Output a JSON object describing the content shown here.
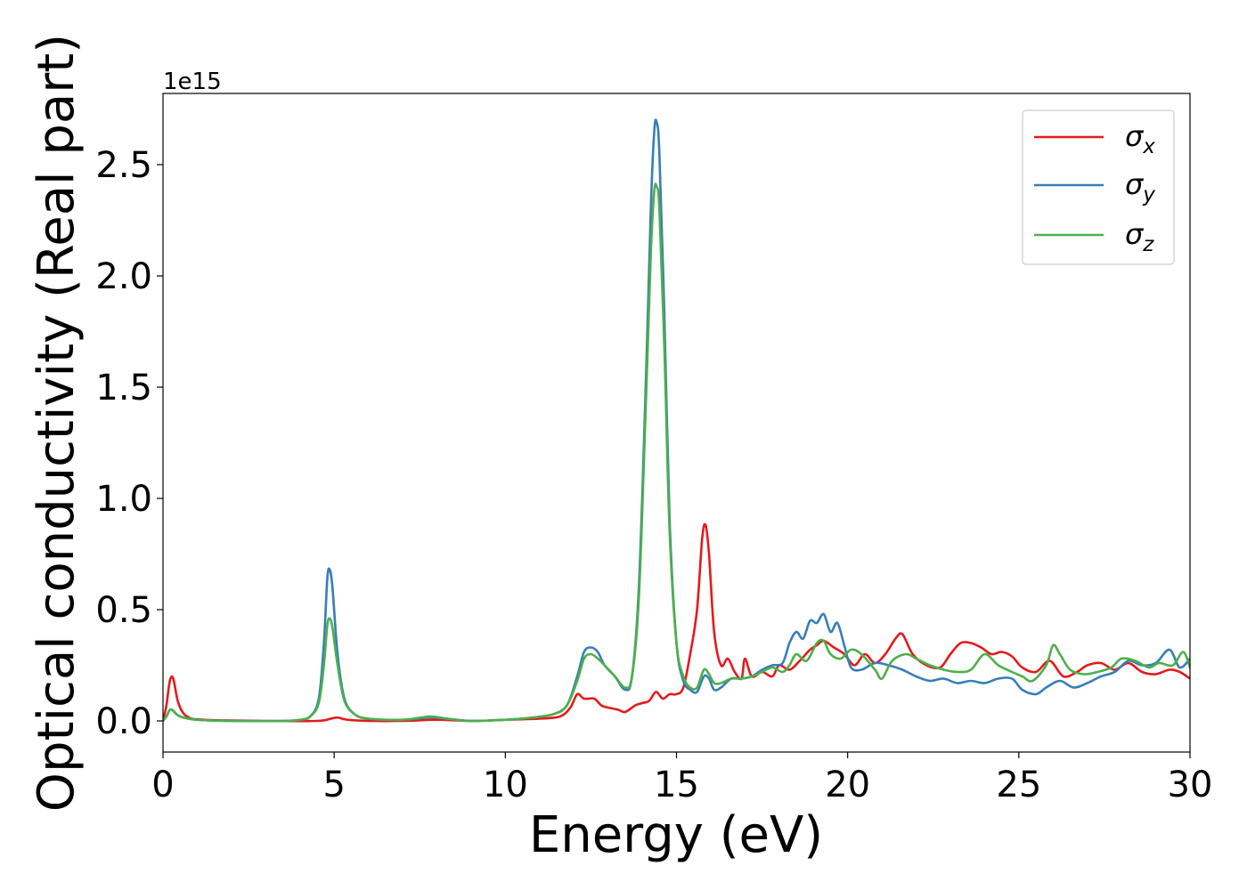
{
  "chart_data": {
    "type": "line",
    "xlabel": "Energy (eV)",
    "ylabel": "Optical conductivity (Real part)",
    "offset_label": "1e15",
    "y_scale_factor": 1000000000000000.0,
    "xlim": [
      0,
      30
    ],
    "ylim": [
      -0.14,
      2.82
    ],
    "xticks": [
      0,
      5,
      10,
      15,
      20,
      25,
      30
    ],
    "xtick_labels": [
      "0",
      "5",
      "10",
      "15",
      "20",
      "25",
      "30"
    ],
    "yticks": [
      0.0,
      0.5,
      1.0,
      1.5,
      2.0,
      2.5
    ],
    "ytick_labels": [
      "0.0",
      "0.5",
      "1.0",
      "1.5",
      "2.0",
      "2.5"
    ],
    "grid": false,
    "legend_position": "top-right",
    "series": [
      {
        "name": "σx",
        "legend_symbol": "σ",
        "legend_subscript": "x",
        "color": "#e41a1c",
        "points": [
          [
            0,
            0.0
          ],
          [
            0.1,
            0.07
          ],
          [
            0.2,
            0.18
          ],
          [
            0.3,
            0.19
          ],
          [
            0.45,
            0.08
          ],
          [
            0.7,
            0.02
          ],
          [
            1.2,
            0.005
          ],
          [
            3,
            0.0
          ],
          [
            4.5,
            0.0
          ],
          [
            4.9,
            0.01
          ],
          [
            5.1,
            0.015
          ],
          [
            5.4,
            0.005
          ],
          [
            6,
            0.0
          ],
          [
            7,
            0.0
          ],
          [
            8,
            0.005
          ],
          [
            9,
            0.0
          ],
          [
            10,
            0.005
          ],
          [
            11,
            0.01
          ],
          [
            11.6,
            0.02
          ],
          [
            11.9,
            0.06
          ],
          [
            12.1,
            0.12
          ],
          [
            12.3,
            0.1
          ],
          [
            12.6,
            0.1
          ],
          [
            12.8,
            0.07
          ],
          [
            13.0,
            0.06
          ],
          [
            13.3,
            0.05
          ],
          [
            13.5,
            0.04
          ],
          [
            13.8,
            0.07
          ],
          [
            14.0,
            0.08
          ],
          [
            14.2,
            0.09
          ],
          [
            14.4,
            0.13
          ],
          [
            14.6,
            0.1
          ],
          [
            14.8,
            0.12
          ],
          [
            15.0,
            0.12
          ],
          [
            15.2,
            0.15
          ],
          [
            15.4,
            0.3
          ],
          [
            15.6,
            0.5
          ],
          [
            15.75,
            0.82
          ],
          [
            15.85,
            0.88
          ],
          [
            15.95,
            0.75
          ],
          [
            16.1,
            0.4
          ],
          [
            16.3,
            0.25
          ],
          [
            16.5,
            0.28
          ],
          [
            16.7,
            0.22
          ],
          [
            16.9,
            0.19
          ],
          [
            17.0,
            0.28
          ],
          [
            17.2,
            0.2
          ],
          [
            17.5,
            0.22
          ],
          [
            17.8,
            0.2
          ],
          [
            18.0,
            0.25
          ],
          [
            18.3,
            0.23
          ],
          [
            18.6,
            0.27
          ],
          [
            18.9,
            0.32
          ],
          [
            19.1,
            0.34
          ],
          [
            19.3,
            0.36
          ],
          [
            19.6,
            0.33
          ],
          [
            19.9,
            0.3
          ],
          [
            20.2,
            0.25
          ],
          [
            20.5,
            0.3
          ],
          [
            20.8,
            0.26
          ],
          [
            21.1,
            0.3
          ],
          [
            21.4,
            0.37
          ],
          [
            21.6,
            0.39
          ],
          [
            21.9,
            0.3
          ],
          [
            22.3,
            0.25
          ],
          [
            22.7,
            0.24
          ],
          [
            23.0,
            0.3
          ],
          [
            23.3,
            0.35
          ],
          [
            23.6,
            0.35
          ],
          [
            23.9,
            0.33
          ],
          [
            24.2,
            0.3
          ],
          [
            24.5,
            0.31
          ],
          [
            24.8,
            0.29
          ],
          [
            25.1,
            0.24
          ],
          [
            25.5,
            0.22
          ],
          [
            25.9,
            0.27
          ],
          [
            26.3,
            0.2
          ],
          [
            26.7,
            0.22
          ],
          [
            27.0,
            0.25
          ],
          [
            27.4,
            0.26
          ],
          [
            27.8,
            0.23
          ],
          [
            28.2,
            0.26
          ],
          [
            28.6,
            0.22
          ],
          [
            29.0,
            0.21
          ],
          [
            29.4,
            0.23
          ],
          [
            29.7,
            0.22
          ],
          [
            30,
            0.19
          ]
        ]
      },
      {
        "name": "σy",
        "legend_symbol": "σ",
        "legend_subscript": "y",
        "color": "#377eb8",
        "points": [
          [
            0,
            0.0
          ],
          [
            0.1,
            0.02
          ],
          [
            0.2,
            0.05
          ],
          [
            0.3,
            0.045
          ],
          [
            0.5,
            0.02
          ],
          [
            1,
            0.005
          ],
          [
            2,
            0.0
          ],
          [
            3.5,
            0.0
          ],
          [
            4.0,
            0.005
          ],
          [
            4.3,
            0.02
          ],
          [
            4.55,
            0.1
          ],
          [
            4.7,
            0.35
          ],
          [
            4.8,
            0.64
          ],
          [
            4.87,
            0.68
          ],
          [
            4.95,
            0.6
          ],
          [
            5.1,
            0.3
          ],
          [
            5.3,
            0.1
          ],
          [
            5.6,
            0.03
          ],
          [
            6,
            0.01
          ],
          [
            7,
            0.005
          ],
          [
            7.8,
            0.015
          ],
          [
            8.3,
            0.01
          ],
          [
            9,
            0.0
          ],
          [
            10,
            0.005
          ],
          [
            10.8,
            0.015
          ],
          [
            11.4,
            0.03
          ],
          [
            11.8,
            0.07
          ],
          [
            12.1,
            0.2
          ],
          [
            12.3,
            0.31
          ],
          [
            12.5,
            0.33
          ],
          [
            12.7,
            0.31
          ],
          [
            12.9,
            0.25
          ],
          [
            13.2,
            0.2
          ],
          [
            13.5,
            0.14
          ],
          [
            13.7,
            0.2
          ],
          [
            13.9,
            0.6
          ],
          [
            14.1,
            1.5
          ],
          [
            14.25,
            2.3
          ],
          [
            14.35,
            2.65
          ],
          [
            14.42,
            2.69
          ],
          [
            14.5,
            2.55
          ],
          [
            14.65,
            1.8
          ],
          [
            14.8,
            0.9
          ],
          [
            15.0,
            0.35
          ],
          [
            15.2,
            0.18
          ],
          [
            15.4,
            0.14
          ],
          [
            15.6,
            0.13
          ],
          [
            15.8,
            0.2
          ],
          [
            15.95,
            0.19
          ],
          [
            16.1,
            0.14
          ],
          [
            16.3,
            0.15
          ],
          [
            16.6,
            0.19
          ],
          [
            16.9,
            0.19
          ],
          [
            17.2,
            0.2
          ],
          [
            17.5,
            0.23
          ],
          [
            17.8,
            0.25
          ],
          [
            18.1,
            0.26
          ],
          [
            18.3,
            0.35
          ],
          [
            18.5,
            0.4
          ],
          [
            18.7,
            0.37
          ],
          [
            18.9,
            0.45
          ],
          [
            19.1,
            0.44
          ],
          [
            19.3,
            0.48
          ],
          [
            19.5,
            0.4
          ],
          [
            19.7,
            0.44
          ],
          [
            19.9,
            0.34
          ],
          [
            20.1,
            0.24
          ],
          [
            20.4,
            0.23
          ],
          [
            20.8,
            0.26
          ],
          [
            21.2,
            0.25
          ],
          [
            21.6,
            0.23
          ],
          [
            22.0,
            0.2
          ],
          [
            22.4,
            0.18
          ],
          [
            22.8,
            0.19
          ],
          [
            23.2,
            0.17
          ],
          [
            23.6,
            0.18
          ],
          [
            24.0,
            0.17
          ],
          [
            24.4,
            0.19
          ],
          [
            24.8,
            0.19
          ],
          [
            25.1,
            0.14
          ],
          [
            25.5,
            0.12
          ],
          [
            25.8,
            0.15
          ],
          [
            26.2,
            0.18
          ],
          [
            26.6,
            0.15
          ],
          [
            27.0,
            0.17
          ],
          [
            27.4,
            0.2
          ],
          [
            27.8,
            0.22
          ],
          [
            28.2,
            0.27
          ],
          [
            28.6,
            0.25
          ],
          [
            29.0,
            0.26
          ],
          [
            29.4,
            0.32
          ],
          [
            29.7,
            0.24
          ],
          [
            30,
            0.28
          ]
        ]
      },
      {
        "name": "σz",
        "legend_symbol": "σ",
        "legend_subscript": "z",
        "color": "#4daf4a",
        "points": [
          [
            0,
            0.0
          ],
          [
            0.1,
            0.02
          ],
          [
            0.2,
            0.05
          ],
          [
            0.3,
            0.045
          ],
          [
            0.5,
            0.02
          ],
          [
            1,
            0.005
          ],
          [
            2,
            0.0
          ],
          [
            3.5,
            0.0
          ],
          [
            4.0,
            0.005
          ],
          [
            4.3,
            0.02
          ],
          [
            4.55,
            0.08
          ],
          [
            4.7,
            0.25
          ],
          [
            4.8,
            0.43
          ],
          [
            4.87,
            0.46
          ],
          [
            4.95,
            0.42
          ],
          [
            5.1,
            0.25
          ],
          [
            5.3,
            0.09
          ],
          [
            5.6,
            0.03
          ],
          [
            6,
            0.01
          ],
          [
            7,
            0.005
          ],
          [
            7.8,
            0.02
          ],
          [
            8.3,
            0.01
          ],
          [
            9,
            0.0
          ],
          [
            10,
            0.005
          ],
          [
            10.8,
            0.015
          ],
          [
            11.4,
            0.03
          ],
          [
            11.8,
            0.07
          ],
          [
            12.1,
            0.18
          ],
          [
            12.3,
            0.28
          ],
          [
            12.5,
            0.3
          ],
          [
            12.7,
            0.28
          ],
          [
            12.9,
            0.25
          ],
          [
            13.2,
            0.2
          ],
          [
            13.5,
            0.15
          ],
          [
            13.7,
            0.2
          ],
          [
            13.9,
            0.55
          ],
          [
            14.1,
            1.4
          ],
          [
            14.25,
            2.1
          ],
          [
            14.35,
            2.38
          ],
          [
            14.42,
            2.4
          ],
          [
            14.5,
            2.3
          ],
          [
            14.65,
            1.65
          ],
          [
            14.8,
            0.85
          ],
          [
            15.0,
            0.35
          ],
          [
            15.2,
            0.2
          ],
          [
            15.4,
            0.15
          ],
          [
            15.6,
            0.15
          ],
          [
            15.8,
            0.23
          ],
          [
            15.95,
            0.21
          ],
          [
            16.1,
            0.17
          ],
          [
            16.3,
            0.17
          ],
          [
            16.6,
            0.19
          ],
          [
            16.9,
            0.19
          ],
          [
            17.2,
            0.2
          ],
          [
            17.5,
            0.22
          ],
          [
            17.8,
            0.24
          ],
          [
            18.1,
            0.22
          ],
          [
            18.3,
            0.25
          ],
          [
            18.5,
            0.3
          ],
          [
            18.8,
            0.27
          ],
          [
            19.1,
            0.35
          ],
          [
            19.3,
            0.36
          ],
          [
            19.5,
            0.3
          ],
          [
            19.8,
            0.28
          ],
          [
            20.1,
            0.32
          ],
          [
            20.4,
            0.3
          ],
          [
            20.8,
            0.23
          ],
          [
            21.0,
            0.19
          ],
          [
            21.3,
            0.27
          ],
          [
            21.7,
            0.3
          ],
          [
            22.0,
            0.28
          ],
          [
            22.4,
            0.25
          ],
          [
            22.8,
            0.23
          ],
          [
            23.2,
            0.22
          ],
          [
            23.6,
            0.23
          ],
          [
            24.0,
            0.3
          ],
          [
            24.4,
            0.25
          ],
          [
            24.8,
            0.22
          ],
          [
            25.1,
            0.2
          ],
          [
            25.4,
            0.18
          ],
          [
            25.8,
            0.25
          ],
          [
            26.0,
            0.34
          ],
          [
            26.2,
            0.3
          ],
          [
            26.5,
            0.23
          ],
          [
            26.9,
            0.21
          ],
          [
            27.3,
            0.22
          ],
          [
            27.7,
            0.24
          ],
          [
            28.0,
            0.28
          ],
          [
            28.4,
            0.27
          ],
          [
            28.8,
            0.24
          ],
          [
            29.1,
            0.26
          ],
          [
            29.5,
            0.25
          ],
          [
            29.8,
            0.31
          ],
          [
            30,
            0.24
          ]
        ]
      }
    ]
  }
}
